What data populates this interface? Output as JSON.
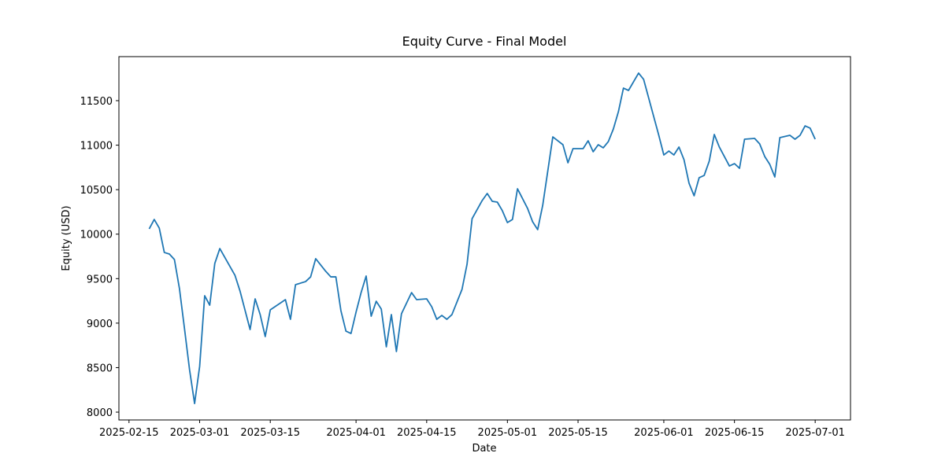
{
  "chart_data": {
    "type": "line",
    "title": "Equity Curve - Final Model",
    "x_label": "Date",
    "y_label": "Equity (USD)",
    "x": [
      "2025-02-19",
      "2025-02-20",
      "2025-02-21",
      "2025-02-22",
      "2025-02-23",
      "2025-02-24",
      "2025-02-25",
      "2025-02-26",
      "2025-02-27",
      "2025-02-28",
      "2025-03-01",
      "2025-03-02",
      "2025-03-03",
      "2025-03-04",
      "2025-03-05",
      "2025-03-08",
      "2025-03-09",
      "2025-03-11",
      "2025-03-12",
      "2025-03-13",
      "2025-03-14",
      "2025-03-15",
      "2025-03-18",
      "2025-03-19",
      "2025-03-20",
      "2025-03-22",
      "2025-03-23",
      "2025-03-24",
      "2025-03-26",
      "2025-03-27",
      "2025-03-28",
      "2025-03-29",
      "2025-03-30",
      "2025-03-31",
      "2025-04-01",
      "2025-04-02",
      "2025-04-03",
      "2025-04-04",
      "2025-04-05",
      "2025-04-06",
      "2025-04-07",
      "2025-04-08",
      "2025-04-09",
      "2025-04-10",
      "2025-04-12",
      "2025-04-13",
      "2025-04-15",
      "2025-04-16",
      "2025-04-17",
      "2025-04-18",
      "2025-04-19",
      "2025-04-20",
      "2025-04-22",
      "2025-04-23",
      "2025-04-24",
      "2025-04-26",
      "2025-04-27",
      "2025-04-28",
      "2025-04-29",
      "2025-04-30",
      "2025-05-01",
      "2025-05-02",
      "2025-05-03",
      "2025-05-05",
      "2025-05-06",
      "2025-05-07",
      "2025-05-08",
      "2025-05-10",
      "2025-05-12",
      "2025-05-13",
      "2025-05-14",
      "2025-05-16",
      "2025-05-17",
      "2025-05-18",
      "2025-05-19",
      "2025-05-20",
      "2025-05-21",
      "2025-05-22",
      "2025-05-23",
      "2025-05-24",
      "2025-05-25",
      "2025-05-27",
      "2025-05-28",
      "2025-05-31",
      "2025-06-01",
      "2025-06-02",
      "2025-06-03",
      "2025-06-04",
      "2025-06-05",
      "2025-06-06",
      "2025-06-07",
      "2025-06-08",
      "2025-06-09",
      "2025-06-10",
      "2025-06-11",
      "2025-06-12",
      "2025-06-14",
      "2025-06-15",
      "2025-06-16",
      "2025-06-17",
      "2025-06-19",
      "2025-06-20",
      "2025-06-21",
      "2025-06-22",
      "2025-06-23",
      "2025-06-24",
      "2025-06-26",
      "2025-06-27",
      "2025-06-28",
      "2025-06-29",
      "2025-06-30",
      "2025-07-01"
    ],
    "series": [
      {
        "color": "#1f77b4",
        "values": [
          10059,
          10165,
          10068,
          9794,
          9777,
          9715,
          9388,
          8937,
          8477,
          8097,
          8513,
          9308,
          9202,
          9670,
          9838,
          9538,
          9361,
          8928,
          9273,
          9096,
          8849,
          9149,
          9264,
          9043,
          9432,
          9467,
          9520,
          9724,
          9582,
          9520,
          9520,
          9140,
          8910,
          8884,
          9123,
          9343,
          9529,
          9078,
          9246,
          9158,
          8734,
          9096,
          8681,
          9105,
          9343,
          9264,
          9273,
          9184,
          9043,
          9087,
          9043,
          9096,
          9379,
          9662,
          10174,
          10378,
          10457,
          10369,
          10360,
          10263,
          10130,
          10165,
          10510,
          10289,
          10139,
          10051,
          10325,
          11093,
          11005,
          10802,
          10961,
          10961,
          11049,
          10926,
          11005,
          10970,
          11040,
          11182,
          11376,
          11641,
          11615,
          11810,
          11739,
          11111,
          10890,
          10934,
          10890,
          10979,
          10837,
          10572,
          10431,
          10634,
          10660,
          10820,
          11120,
          10979,
          10766,
          10793,
          10740,
          11067,
          11076,
          11014,
          10873,
          10784,
          10643,
          11085,
          11111,
          11067,
          11111,
          11217,
          11191,
          11067
        ]
      }
    ],
    "xlim": [
      "2025-02-13",
      "2025-07-08"
    ],
    "xticks": [
      "2025-02-15",
      "2025-03-01",
      "2025-03-15",
      "2025-04-01",
      "2025-04-15",
      "2025-05-01",
      "2025-05-15",
      "2025-06-01",
      "2025-06-15",
      "2025-07-01"
    ],
    "ylim": [
      7912,
      11995
    ],
    "yticks": [
      8000,
      8500,
      9000,
      9500,
      10000,
      10500,
      11000,
      11500
    ]
  }
}
